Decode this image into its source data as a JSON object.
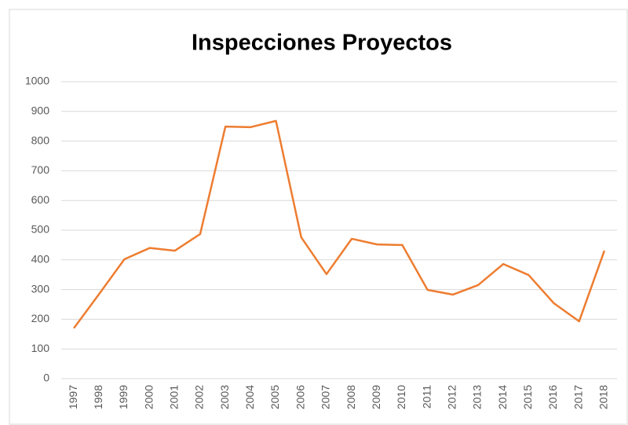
{
  "chart_data": {
    "type": "line",
    "title": "Inspecciones Proyectos",
    "categories": [
      "1997",
      "1998",
      "1999",
      "2000",
      "2001",
      "2002",
      "2003",
      "2004",
      "2005",
      "2006",
      "2007",
      "2008",
      "2009",
      "2010",
      "2011",
      "2012",
      "2013",
      "2014",
      "2015",
      "2016",
      "2017",
      "2018"
    ],
    "series": [
      {
        "name": "Inspecciones Proyectos",
        "color": "#ed7d31",
        "values": [
          170,
          285,
          402,
          440,
          431,
          487,
          849,
          847,
          868,
          476,
          352,
          471,
          452,
          450,
          299,
          283,
          315,
          386,
          349,
          254,
          193,
          431
        ]
      }
    ],
    "ylim": [
      0,
      1000
    ],
    "yticks": [
      0,
      100,
      200,
      300,
      400,
      500,
      600,
      700,
      800,
      900,
      1000
    ],
    "grid": true
  }
}
